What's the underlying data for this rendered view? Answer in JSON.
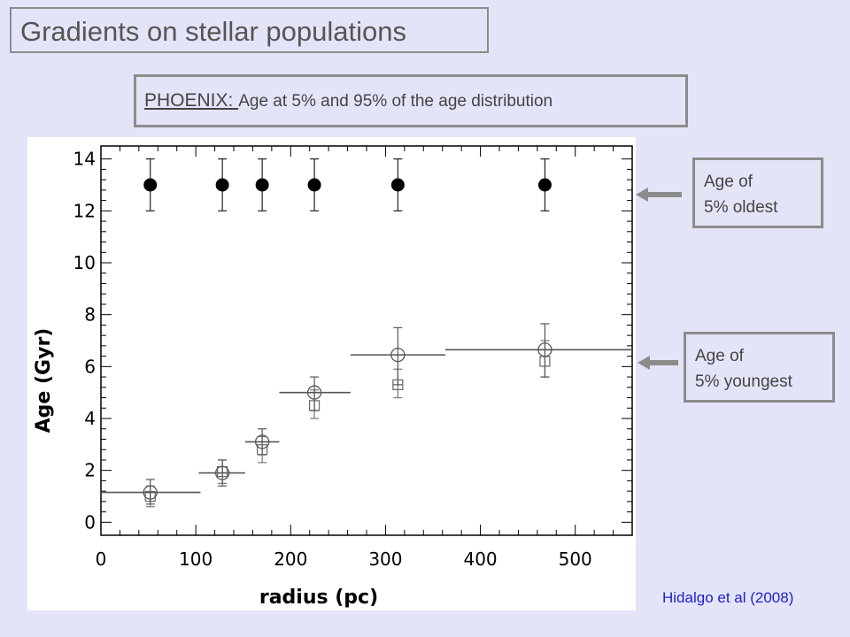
{
  "slide": {
    "title": "Gradients on stellar populations",
    "subtitle_lead": "PHOENIX: ",
    "subtitle_rest": "Age at 5% and 95% of the age distribution",
    "citation": "Hidalgo et al (2008)",
    "annotation_oldest": {
      "line1": "Age of",
      "line2": "5% oldest"
    },
    "annotation_youngest": {
      "line1": "Age of",
      "line2": "5% youngest"
    }
  },
  "chart_data": {
    "type": "scatter",
    "xlabel": "radius (pc)",
    "ylabel": "Age (Gyr)",
    "xlim": [
      0,
      560
    ],
    "ylim": [
      -0.5,
      14.5
    ],
    "xticks": [
      0,
      100,
      200,
      300,
      400,
      500
    ],
    "yticks": [
      0,
      2,
      4,
      6,
      8,
      10,
      12,
      14
    ],
    "grid": false,
    "series": [
      {
        "marker": "filled-circle",
        "points": [
          {
            "x": 52,
            "y": 13.0,
            "yerr": [
              12.0,
              14.0
            ]
          },
          {
            "x": 128,
            "y": 13.0,
            "yerr": [
              12.0,
              14.0
            ]
          },
          {
            "x": 170,
            "y": 13.0,
            "yerr": [
              12.0,
              14.0
            ]
          },
          {
            "x": 225,
            "y": 13.0,
            "yerr": [
              12.0,
              14.0
            ]
          },
          {
            "x": 313,
            "y": 13.0,
            "yerr": [
              12.0,
              14.0
            ]
          },
          {
            "x": 468,
            "y": 13.0,
            "yerr": [
              12.0,
              14.0
            ]
          }
        ]
      },
      {
        "marker": "open-circle",
        "points": [
          {
            "x": 52,
            "y": 1.15,
            "yerr": [
              0.7,
              1.65
            ],
            "xrange": [
              0,
              105
            ]
          },
          {
            "x": 128,
            "y": 1.9,
            "yerr": [
              1.4,
              2.4
            ],
            "xrange": [
              103,
              152
            ]
          },
          {
            "x": 170,
            "y": 3.1,
            "yerr": [
              2.6,
              3.6
            ],
            "xrange": [
              152,
              188
            ]
          },
          {
            "x": 225,
            "y": 5.0,
            "yerr": [
              4.3,
              5.6
            ],
            "xrange": [
              188,
              263
            ]
          },
          {
            "x": 313,
            "y": 6.45,
            "yerr": [
              5.3,
              7.5
            ],
            "xrange": [
              263,
              363
            ]
          },
          {
            "x": 468,
            "y": 6.65,
            "yerr": [
              5.6,
              7.65
            ],
            "xrange": [
              363,
              560
            ]
          }
        ]
      },
      {
        "marker": "open-square",
        "points": [
          {
            "x": 52,
            "y": 1.0,
            "yerr": [
              0.6,
              1.4
            ]
          },
          {
            "x": 128,
            "y": 1.95,
            "yerr": [
              1.5,
              2.4
            ]
          },
          {
            "x": 170,
            "y": 2.8,
            "yerr": [
              2.3,
              3.3
            ]
          },
          {
            "x": 225,
            "y": 4.5,
            "yerr": [
              4.0,
              5.1
            ]
          },
          {
            "x": 313,
            "y": 5.3,
            "yerr": [
              4.8,
              5.9
            ]
          },
          {
            "x": 468,
            "y": 6.2,
            "yerr": [
              5.6,
              7.0
            ]
          }
        ]
      }
    ]
  },
  "colors": {
    "background": "#e4e4f8",
    "border": "#8c8c8c",
    "citation": "#1e1ed2"
  }
}
